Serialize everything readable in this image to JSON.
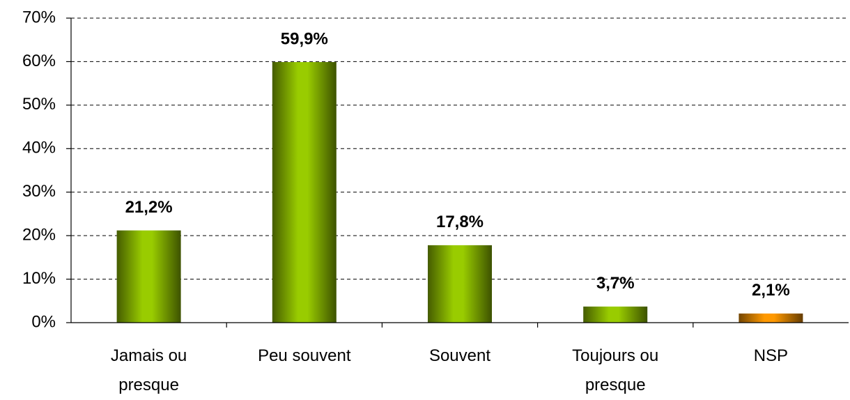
{
  "chart_data": {
    "type": "bar",
    "categories": [
      "Jamais ou presque",
      "Peu souvent",
      "Souvent",
      "Toujours ou presque",
      "NSP"
    ],
    "values": [
      21.2,
      59.9,
      17.8,
      3.7,
      2.1
    ],
    "value_labels": [
      "21,2%",
      "59,9%",
      "17,8%",
      "3,7%",
      "2,1%"
    ],
    "colors": [
      "#99cc00",
      "#99cc00",
      "#99cc00",
      "#99cc00",
      "#ff9900"
    ],
    "ylim": [
      0,
      70
    ],
    "yticks": [
      {
        "value": 0,
        "label": "0%"
      },
      {
        "value": 10,
        "label": "10%"
      },
      {
        "value": 20,
        "label": "20%"
      },
      {
        "value": 30,
        "label": "30%"
      },
      {
        "value": 40,
        "label": "40%"
      },
      {
        "value": 50,
        "label": "50%"
      },
      {
        "value": 60,
        "label": "60%"
      },
      {
        "value": 70,
        "label": "70%"
      }
    ],
    "grid": true
  }
}
